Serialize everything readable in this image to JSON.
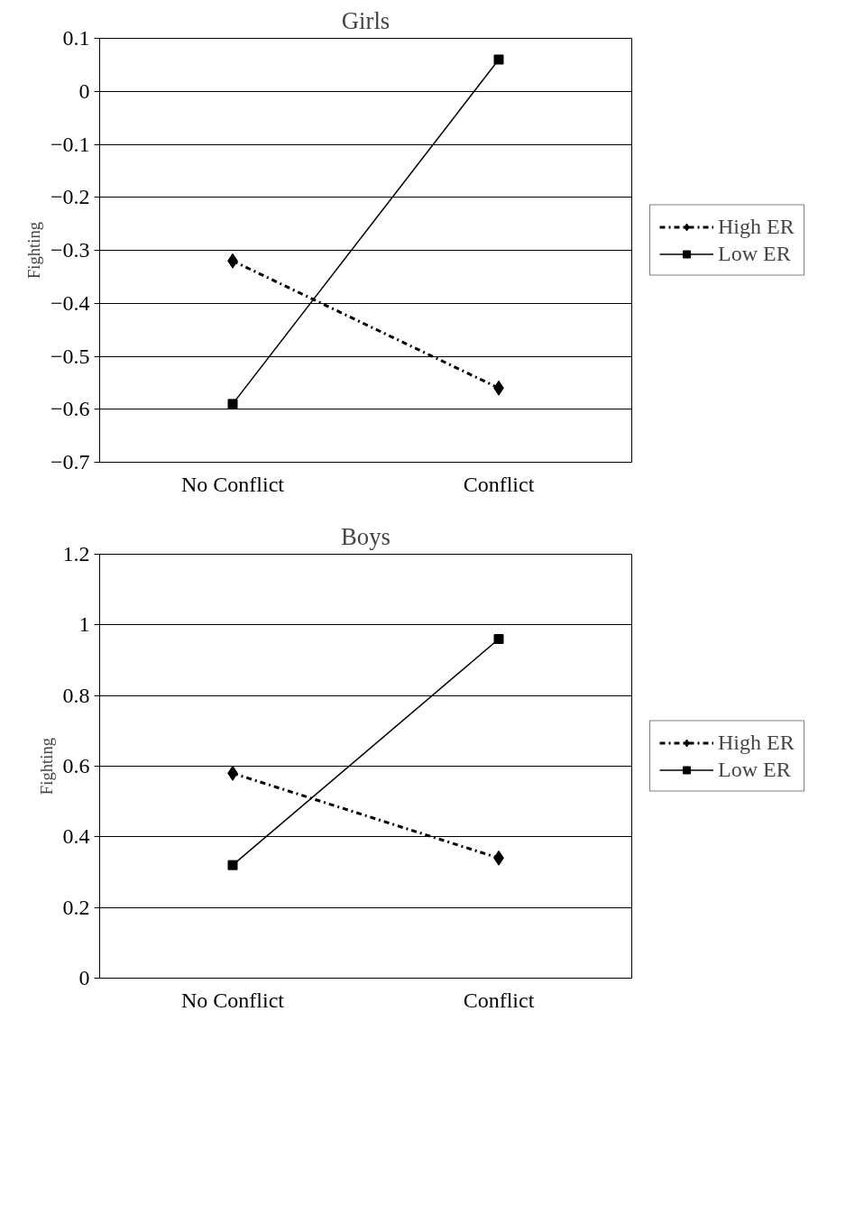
{
  "chart_data": [
    {
      "type": "line",
      "title": "Girls",
      "ylabel": "Fighting",
      "categories": [
        "No Conflict",
        "Conflict"
      ],
      "ylim": [
        -0.7,
        0.1
      ],
      "yticks": [
        -0.7,
        -0.6,
        -0.5,
        -0.4,
        -0.3,
        -0.2,
        -0.1,
        0,
        0.1
      ],
      "grid": "y",
      "legend": "right",
      "series": [
        {
          "name": "High ER",
          "color": "#000000",
          "values": [
            -0.32,
            -0.56
          ],
          "marker": "diamond",
          "line_style": "dashed"
        },
        {
          "name": "Low ER",
          "color": "#000000",
          "values": [
            -0.59,
            0.06
          ],
          "marker": "square",
          "line_style": "solid"
        }
      ]
    },
    {
      "type": "line",
      "title": "Boys",
      "ylabel": "Fighting",
      "categories": [
        "No Conflict",
        "Conflict"
      ],
      "ylim": [
        0,
        1.2
      ],
      "yticks": [
        0,
        0.2,
        0.4,
        0.6,
        0.8,
        1,
        1.2
      ],
      "grid": "y",
      "legend": "right",
      "series": [
        {
          "name": "High ER",
          "color": "#000000",
          "values": [
            0.58,
            0.34
          ],
          "marker": "diamond",
          "line_style": "dashed"
        },
        {
          "name": "Low ER",
          "color": "#000000",
          "values": [
            0.32,
            0.96
          ],
          "marker": "square",
          "line_style": "solid"
        }
      ]
    }
  ]
}
